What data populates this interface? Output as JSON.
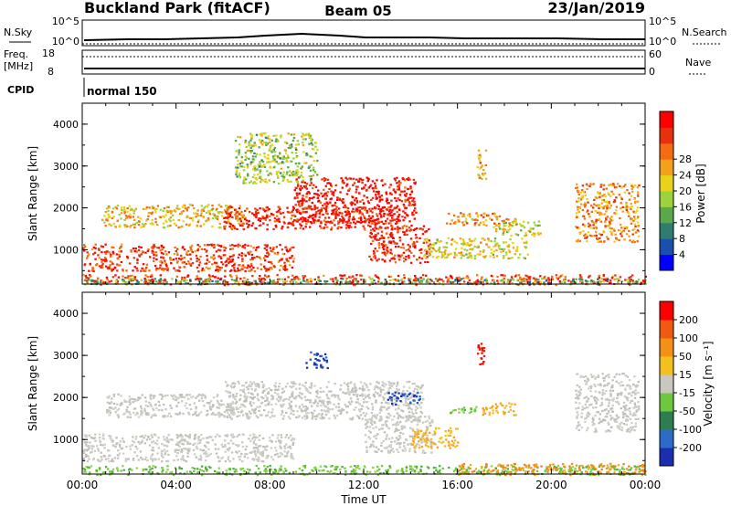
{
  "header": {
    "title": "Buckland Park (fitACF)",
    "beam": "Beam 05",
    "date": "23/Jan/2019"
  },
  "status_panel": {
    "nsky_label": "N.Sky",
    "nsearch_label": "N.Search",
    "sky_tick_top": "10^5",
    "sky_tick_bottom": "10^0",
    "freq_label_1": "Freq.",
    "freq_label_2": "[MHz]",
    "freq_ticks": [
      "18",
      "8"
    ],
    "nave_label": "Nave",
    "nave_ticks": [
      "60",
      "0"
    ],
    "cpid_label": "CPID",
    "cpid_value": "normal 150"
  },
  "chart_data": [
    {
      "type": "heatmap",
      "name_key": "power",
      "title": "",
      "xlabel": "",
      "ylabel": "Slant Range [km]",
      "x_ticks": [
        "00:00",
        "04:00",
        "08:00",
        "12:00",
        "16:00",
        "20:00",
        "00:00"
      ],
      "y_ticks": [
        "1000",
        "2000",
        "3000",
        "4000"
      ],
      "xlim_hours": [
        0,
        24
      ],
      "ylim_km": [
        180,
        4500
      ],
      "colorbar": {
        "label": "Power [dB]",
        "ticks": [
          "4",
          "8",
          "12",
          "16",
          "20",
          "24",
          "28"
        ],
        "colors": [
          "#0000ff",
          "#1a4fb0",
          "#2e7d6e",
          "#5aa84a",
          "#9cd23c",
          "#e8d21a",
          "#f4a01c",
          "#f36c12",
          "#e8300c",
          "#ff0000"
        ]
      },
      "regions": [
        {
          "t": [
            0.0,
            24.0
          ],
          "r": [
            180,
            420
          ],
          "level": 0.85
        },
        {
          "t": [
            0.0,
            9.0
          ],
          "r": [
            500,
            1150
          ],
          "level": 0.85
        },
        {
          "t": [
            0.8,
            7.0
          ],
          "r": [
            1550,
            2100
          ],
          "level": 0.6
        },
        {
          "t": [
            6.0,
            13.5
          ],
          "r": [
            1500,
            2050
          ],
          "level": 0.9
        },
        {
          "t": [
            9.0,
            14.2
          ],
          "r": [
            1650,
            2750
          ],
          "level": 0.95
        },
        {
          "t": [
            12.2,
            14.8
          ],
          "r": [
            700,
            1600
          ],
          "level": 0.9
        },
        {
          "t": [
            14.5,
            19.0
          ],
          "r": [
            800,
            1300
          ],
          "level": 0.55
        },
        {
          "t": [
            15.5,
            18.5
          ],
          "r": [
            1600,
            1900
          ],
          "level": 0.65
        },
        {
          "t": [
            17.5,
            19.5
          ],
          "r": [
            1350,
            1700
          ],
          "level": 0.5
        },
        {
          "t": [
            21.0,
            23.7
          ],
          "r": [
            1200,
            2600
          ],
          "level": 0.7
        },
        {
          "t": [
            0.0,
            24.0
          ],
          "r": [
            190,
            330
          ],
          "level": 0.35
        },
        {
          "t": [
            6.5,
            10.0
          ],
          "r": [
            2600,
            3800
          ],
          "level": 0.45
        },
        {
          "t": [
            16.8,
            17.2
          ],
          "r": [
            2700,
            3400
          ],
          "level": 0.65
        }
      ]
    },
    {
      "type": "heatmap",
      "name_key": "velocity",
      "title": "",
      "xlabel": "Time UT",
      "ylabel": "Slant Range [km]",
      "x_ticks": [
        "00:00",
        "04:00",
        "08:00",
        "12:00",
        "16:00",
        "20:00",
        "00:00"
      ],
      "y_ticks": [
        "1000",
        "2000",
        "3000",
        "4000"
      ],
      "xlim_hours": [
        0,
        24
      ],
      "ylim_km": [
        180,
        4500
      ],
      "colorbar": {
        "label": "Velocity [m s⁻¹]",
        "ticks": [
          "200",
          "100",
          "50",
          "15",
          "-15",
          "-50",
          "-100",
          "-200"
        ],
        "colors": [
          "#1a2fb0",
          "#2c6cc9",
          "#2e7d4e",
          "#6cc83c",
          "#c8c8c0",
          "#f4c01c",
          "#f49018",
          "#f05a10",
          "#ff0000"
        ]
      },
      "regions": [
        {
          "t": [
            0.0,
            24.0
          ],
          "r": [
            180,
            400
          ],
          "kind": "green"
        },
        {
          "t": [
            0.0,
            9.0
          ],
          "r": [
            500,
            1150
          ],
          "kind": "gray"
        },
        {
          "t": [
            1.0,
            7.0
          ],
          "r": [
            1550,
            2100
          ],
          "kind": "gray"
        },
        {
          "t": [
            6.0,
            14.5
          ],
          "r": [
            1500,
            2400
          ],
          "kind": "gray"
        },
        {
          "t": [
            12.0,
            15.0
          ],
          "r": [
            700,
            1600
          ],
          "kind": "gray"
        },
        {
          "t": [
            13.0,
            14.5
          ],
          "r": [
            1850,
            2150
          ],
          "kind": "blue"
        },
        {
          "t": [
            14.0,
            16.0
          ],
          "r": [
            800,
            1300
          ],
          "kind": "yellow"
        },
        {
          "t": [
            17.0,
            18.5
          ],
          "r": [
            1600,
            1900
          ],
          "kind": "yellow"
        },
        {
          "t": [
            15.6,
            16.8
          ],
          "r": [
            1650,
            1800
          ],
          "kind": "green"
        },
        {
          "t": [
            21.0,
            23.7
          ],
          "r": [
            1200,
            2600
          ],
          "kind": "gray"
        },
        {
          "t": [
            16.0,
            24.0
          ],
          "r": [
            180,
            450
          ],
          "kind": "orange"
        },
        {
          "t": [
            16.8,
            17.1
          ],
          "r": [
            2800,
            3300
          ],
          "kind": "red"
        },
        {
          "t": [
            9.5,
            10.5
          ],
          "r": [
            2700,
            3100
          ],
          "kind": "blue"
        }
      ]
    }
  ]
}
